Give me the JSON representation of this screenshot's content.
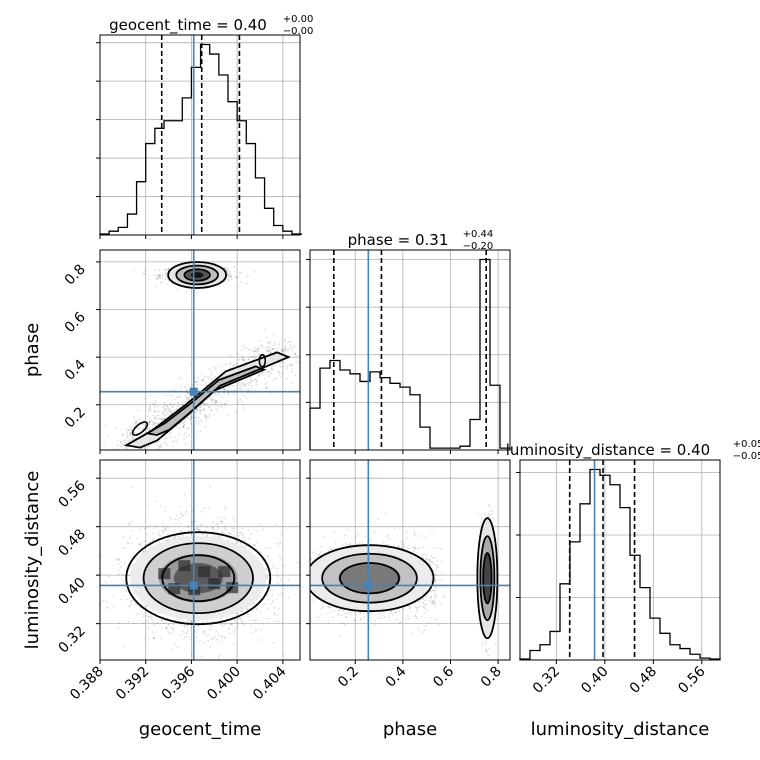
{
  "chart_data": {
    "type": "corner",
    "parameters": [
      "geocent_time",
      "phase",
      "luminosity_distance"
    ],
    "truths": {
      "geocent_time": 0.3962,
      "phase": 0.255,
      "luminosity_distance": 0.383
    },
    "truth_color": "#4682b4",
    "contour_color": "#000000",
    "marginals": [
      {
        "param": "geocent_time",
        "title": {
          "base": "geocent_time = 0.40",
          "sup": "+0.00",
          "sub": "−0.00"
        },
        "range": [
          0.388,
          0.4055
        ],
        "bin_edges": [
          0.388,
          0.3888,
          0.3896,
          0.3904,
          0.3912,
          0.392,
          0.3928,
          0.3936,
          0.3944,
          0.3952,
          0.396,
          0.3968,
          0.3976,
          0.3984,
          0.3992,
          0.4,
          0.4008,
          0.4016,
          0.4024,
          0.4032,
          0.404,
          0.4048,
          0.4056
        ],
        "counts": [
          0.005,
          0.02,
          0.04,
          0.11,
          0.28,
          0.48,
          0.56,
          0.6,
          0.6,
          0.72,
          0.88,
          1.0,
          0.95,
          0.84,
          0.7,
          0.6,
          0.48,
          0.3,
          0.14,
          0.05,
          0.02,
          0.005
        ],
        "quantiles": [
          0.3934,
          0.3969,
          0.4002
        ],
        "yticks": 5
      },
      {
        "param": "phase",
        "title": {
          "base": "phase = 0.31",
          "sup": "+0.44",
          "sub": "−0.20"
        },
        "range": [
          0.01,
          0.85
        ],
        "bin_edges": [
          0.01,
          0.052,
          0.094,
          0.136,
          0.178,
          0.22,
          0.262,
          0.304,
          0.346,
          0.388,
          0.43,
          0.472,
          0.514,
          0.556,
          0.598,
          0.64,
          0.682,
          0.724,
          0.766,
          0.808,
          0.85
        ],
        "counts": [
          0.22,
          0.43,
          0.47,
          0.42,
          0.4,
          0.36,
          0.41,
          0.38,
          0.35,
          0.33,
          0.29,
          0.12,
          0.01,
          0.01,
          0.01,
          0.02,
          0.16,
          1.0,
          0.34,
          0.01
        ],
        "quantiles": [
          0.11,
          0.31,
          0.75
        ],
        "yticks": 4
      },
      {
        "param": "luminosity_distance",
        "title": {
          "base": "luminosity_distance = 0.40",
          "sup": "+0.05",
          "sub": "−0.05"
        },
        "range": [
          0.26,
          0.59
        ],
        "bin_edges": [
          0.26,
          0.2765,
          0.293,
          0.3095,
          0.326,
          0.3425,
          0.359,
          0.3755,
          0.392,
          0.4085,
          0.425,
          0.4415,
          0.458,
          0.4745,
          0.491,
          0.5075,
          0.524,
          0.5405,
          0.557,
          0.5735,
          0.59
        ],
        "counts": [
          0.005,
          0.05,
          0.08,
          0.15,
          0.4,
          0.62,
          0.82,
          1.0,
          0.97,
          0.92,
          0.8,
          0.55,
          0.38,
          0.22,
          0.14,
          0.08,
          0.06,
          0.03,
          0.01,
          0.005
        ],
        "quantiles": [
          0.342,
          0.397,
          0.449
        ],
        "yticks": 3
      }
    ],
    "axes": {
      "geocent_time": {
        "range": [
          0.388,
          0.4055
        ],
        "ticks": [
          0.388,
          0.392,
          0.396,
          0.4,
          0.404
        ],
        "tick_labels": [
          "0.388",
          "0.392",
          "0.396",
          "0.400",
          "0.404"
        ]
      },
      "phase": {
        "range": [
          0.01,
          0.85
        ],
        "ticks": [
          0.2,
          0.4,
          0.6,
          0.8
        ],
        "tick_labels": [
          "0.2",
          "0.4",
          "0.6",
          "0.8"
        ]
      },
      "luminosity_distance": {
        "range": [
          0.26,
          0.59
        ],
        "ticks": [
          0.32,
          0.4,
          0.48,
          0.56
        ],
        "tick_labels": [
          "0.32",
          "0.40",
          "0.48",
          "0.56"
        ]
      }
    },
    "xlabels": [
      "geocent_time",
      "phase",
      "luminosity_distance"
    ],
    "ylabels": [
      "",
      "phase",
      "luminosity_distance"
    ],
    "grid": true
  }
}
